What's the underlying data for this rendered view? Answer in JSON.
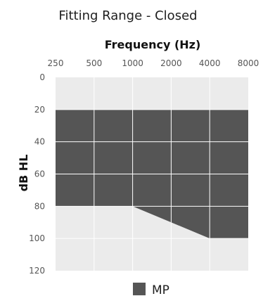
{
  "chart_data": {
    "type": "area",
    "title": "Fitting Range - Closed",
    "xlabel": "Frequency (Hz)",
    "ylabel": "dB HL",
    "x_ticks": [
      "250",
      "500",
      "1000",
      "2000",
      "4000",
      "8000"
    ],
    "y_ticks": [
      "0",
      "20",
      "40",
      "60",
      "80",
      "100",
      "120"
    ],
    "ylim": [
      0,
      120
    ],
    "y_inverted": true,
    "x_scale": "log",
    "grid": true,
    "legend": {
      "position": "bottom",
      "entries": [
        "MP"
      ]
    },
    "series": [
      {
        "name": "MP",
        "x": [
          250,
          500,
          1000,
          2000,
          4000,
          8000
        ],
        "upper_db": [
          20,
          20,
          20,
          20,
          20,
          20
        ],
        "lower_db": [
          80,
          80,
          80,
          90,
          100,
          100
        ]
      }
    ],
    "colors": {
      "plot_background": "#ebebeb",
      "fitting_range": "#555555",
      "grid": "#ffffff"
    }
  }
}
